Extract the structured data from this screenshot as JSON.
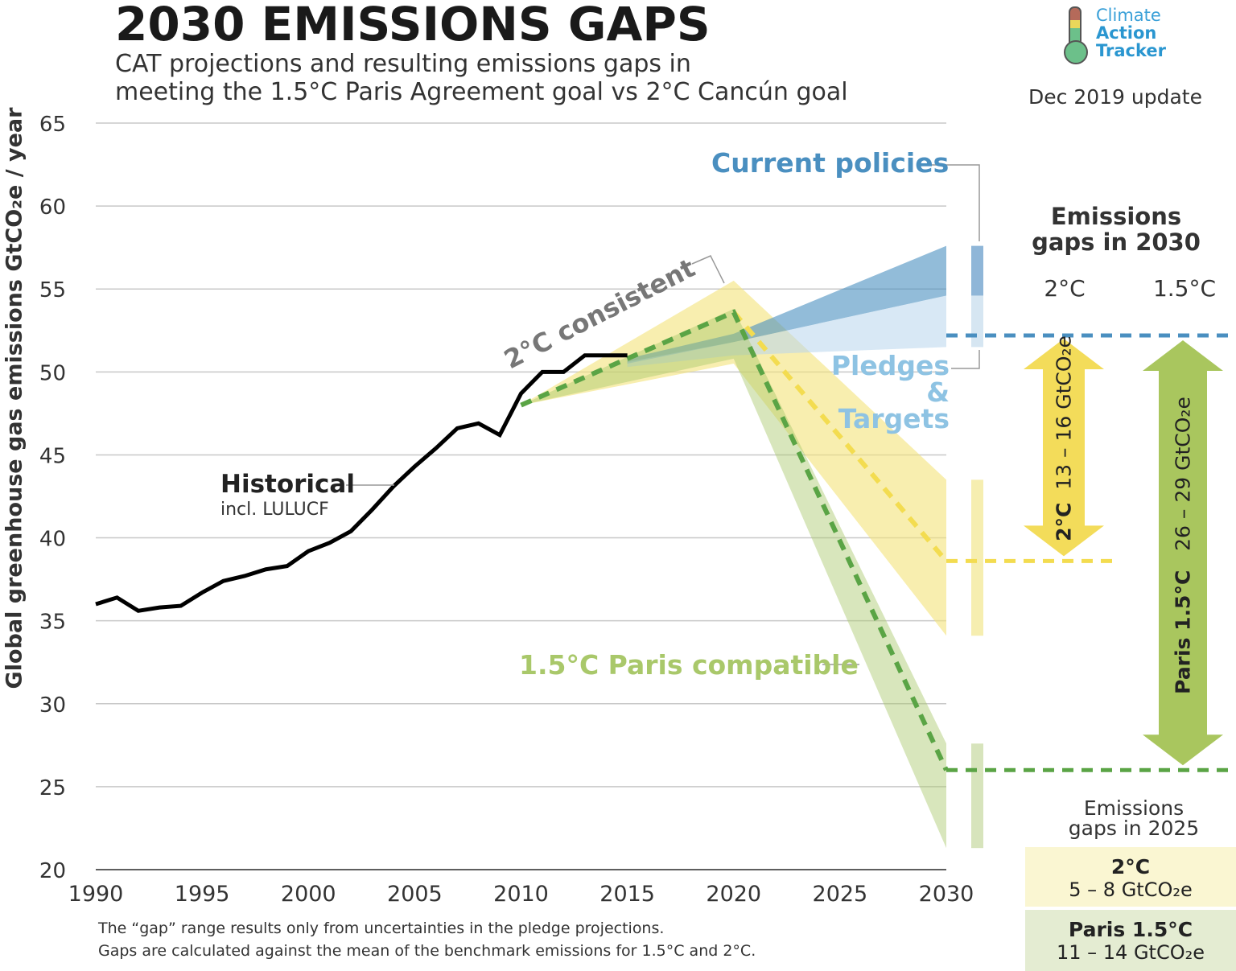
{
  "header": {
    "title": "2030 EMISSIONS GAPS",
    "subtitle_line1": "CAT projections and resulting emissions gaps in",
    "subtitle_line2": "meeting the 1.5°C Paris Agreement goal vs 2°C Cancún goal",
    "logo_text": [
      "Climate",
      "Action",
      "Tracker"
    ],
    "update": "Dec 2019 update"
  },
  "footnote": [
    "The “gap” range results only from uncertainties in the pledge projections.",
    "Gaps are calculated against the mean of the benchmark emissions for 1.5°C and 2°C."
  ],
  "colors": {
    "historical": "#000000",
    "current_policies": "#4a8fc0",
    "pledges": "#8ec3e3",
    "two_c": "#f3e27a",
    "paris": "#a9c86a",
    "paris_dash": "#5aa445",
    "two_c_dash": "#f3dc50"
  },
  "chart_data": {
    "type": "line",
    "ylabel": "Global greenhouse gas emissions  GtCO₂e / year",
    "ylim": [
      20,
      65
    ],
    "xlim": [
      1990,
      2030
    ],
    "grid": true,
    "yticks": [
      20,
      25,
      30,
      35,
      40,
      45,
      50,
      55,
      60,
      65
    ],
    "xticks": [
      1990,
      1995,
      2000,
      2005,
      2010,
      2015,
      2020,
      2025,
      2030
    ],
    "historical": {
      "label": "Historical",
      "sublabel": "incl. LULUCF",
      "x": [
        1990,
        1991,
        1992,
        1993,
        1994,
        1995,
        1996,
        1997,
        1998,
        1999,
        2000,
        2001,
        2002,
        2003,
        2004,
        2005,
        2006,
        2007,
        2008,
        2009,
        2010,
        2011,
        2012,
        2013,
        2014,
        2015
      ],
      "y": [
        36.0,
        36.4,
        35.6,
        35.8,
        35.9,
        36.7,
        37.4,
        37.7,
        38.1,
        38.3,
        39.2,
        39.7,
        40.4,
        41.7,
        43.1,
        44.3,
        45.4,
        46.6,
        46.9,
        46.2,
        48.7,
        50.0,
        50.0,
        51.0,
        51.0,
        51.0
      ]
    },
    "current_policies": {
      "label": "Current policies",
      "x": [
        2015,
        2020,
        2030
      ],
      "low": [
        50.5,
        51.8,
        54.6
      ],
      "high": [
        50.8,
        52.3,
        57.6
      ]
    },
    "pledges": {
      "label": "Pledges & Targets",
      "x": [
        2015,
        2020,
        2030
      ],
      "low": [
        50.3,
        51.0,
        51.5
      ],
      "high": [
        50.6,
        51.8,
        54.6
      ]
    },
    "two_c": {
      "label": "2°C consistent",
      "x": [
        2010,
        2020,
        2030
      ],
      "low": [
        48.0,
        50.5,
        34.1
      ],
      "high": [
        48.0,
        55.5,
        43.5
      ],
      "mean": [
        48.0,
        53.6,
        38.6
      ]
    },
    "paris": {
      "label": "1.5°C Paris compatible",
      "x": [
        2010,
        2020,
        2030
      ],
      "low": [
        48.0,
        50.8,
        21.3
      ],
      "high": [
        48.0,
        53.8,
        27.6
      ],
      "mean": [
        48.0,
        53.6,
        26.0
      ]
    },
    "pledge_mean_2030": 52.2
  },
  "gaps_2030": {
    "title_line1": "Emissions",
    "title_line2": "gaps in 2030",
    "col_2c": "2°C",
    "col_15c": "1.5°C",
    "two_c_label": "2°C",
    "two_c_range": "13 – 16 GtCO₂e",
    "paris_label": "Paris 1.5°C",
    "paris_range": "26 – 29 GtCO₂e"
  },
  "gaps_2025": {
    "title_line1": "Emissions",
    "title_line2": "gaps in 2025",
    "two_c_label": "2°C",
    "two_c_value": "5 – 8  GtCO₂e",
    "paris_label": "Paris 1.5°C",
    "paris_value": "11 – 14  GtCO₂e"
  }
}
